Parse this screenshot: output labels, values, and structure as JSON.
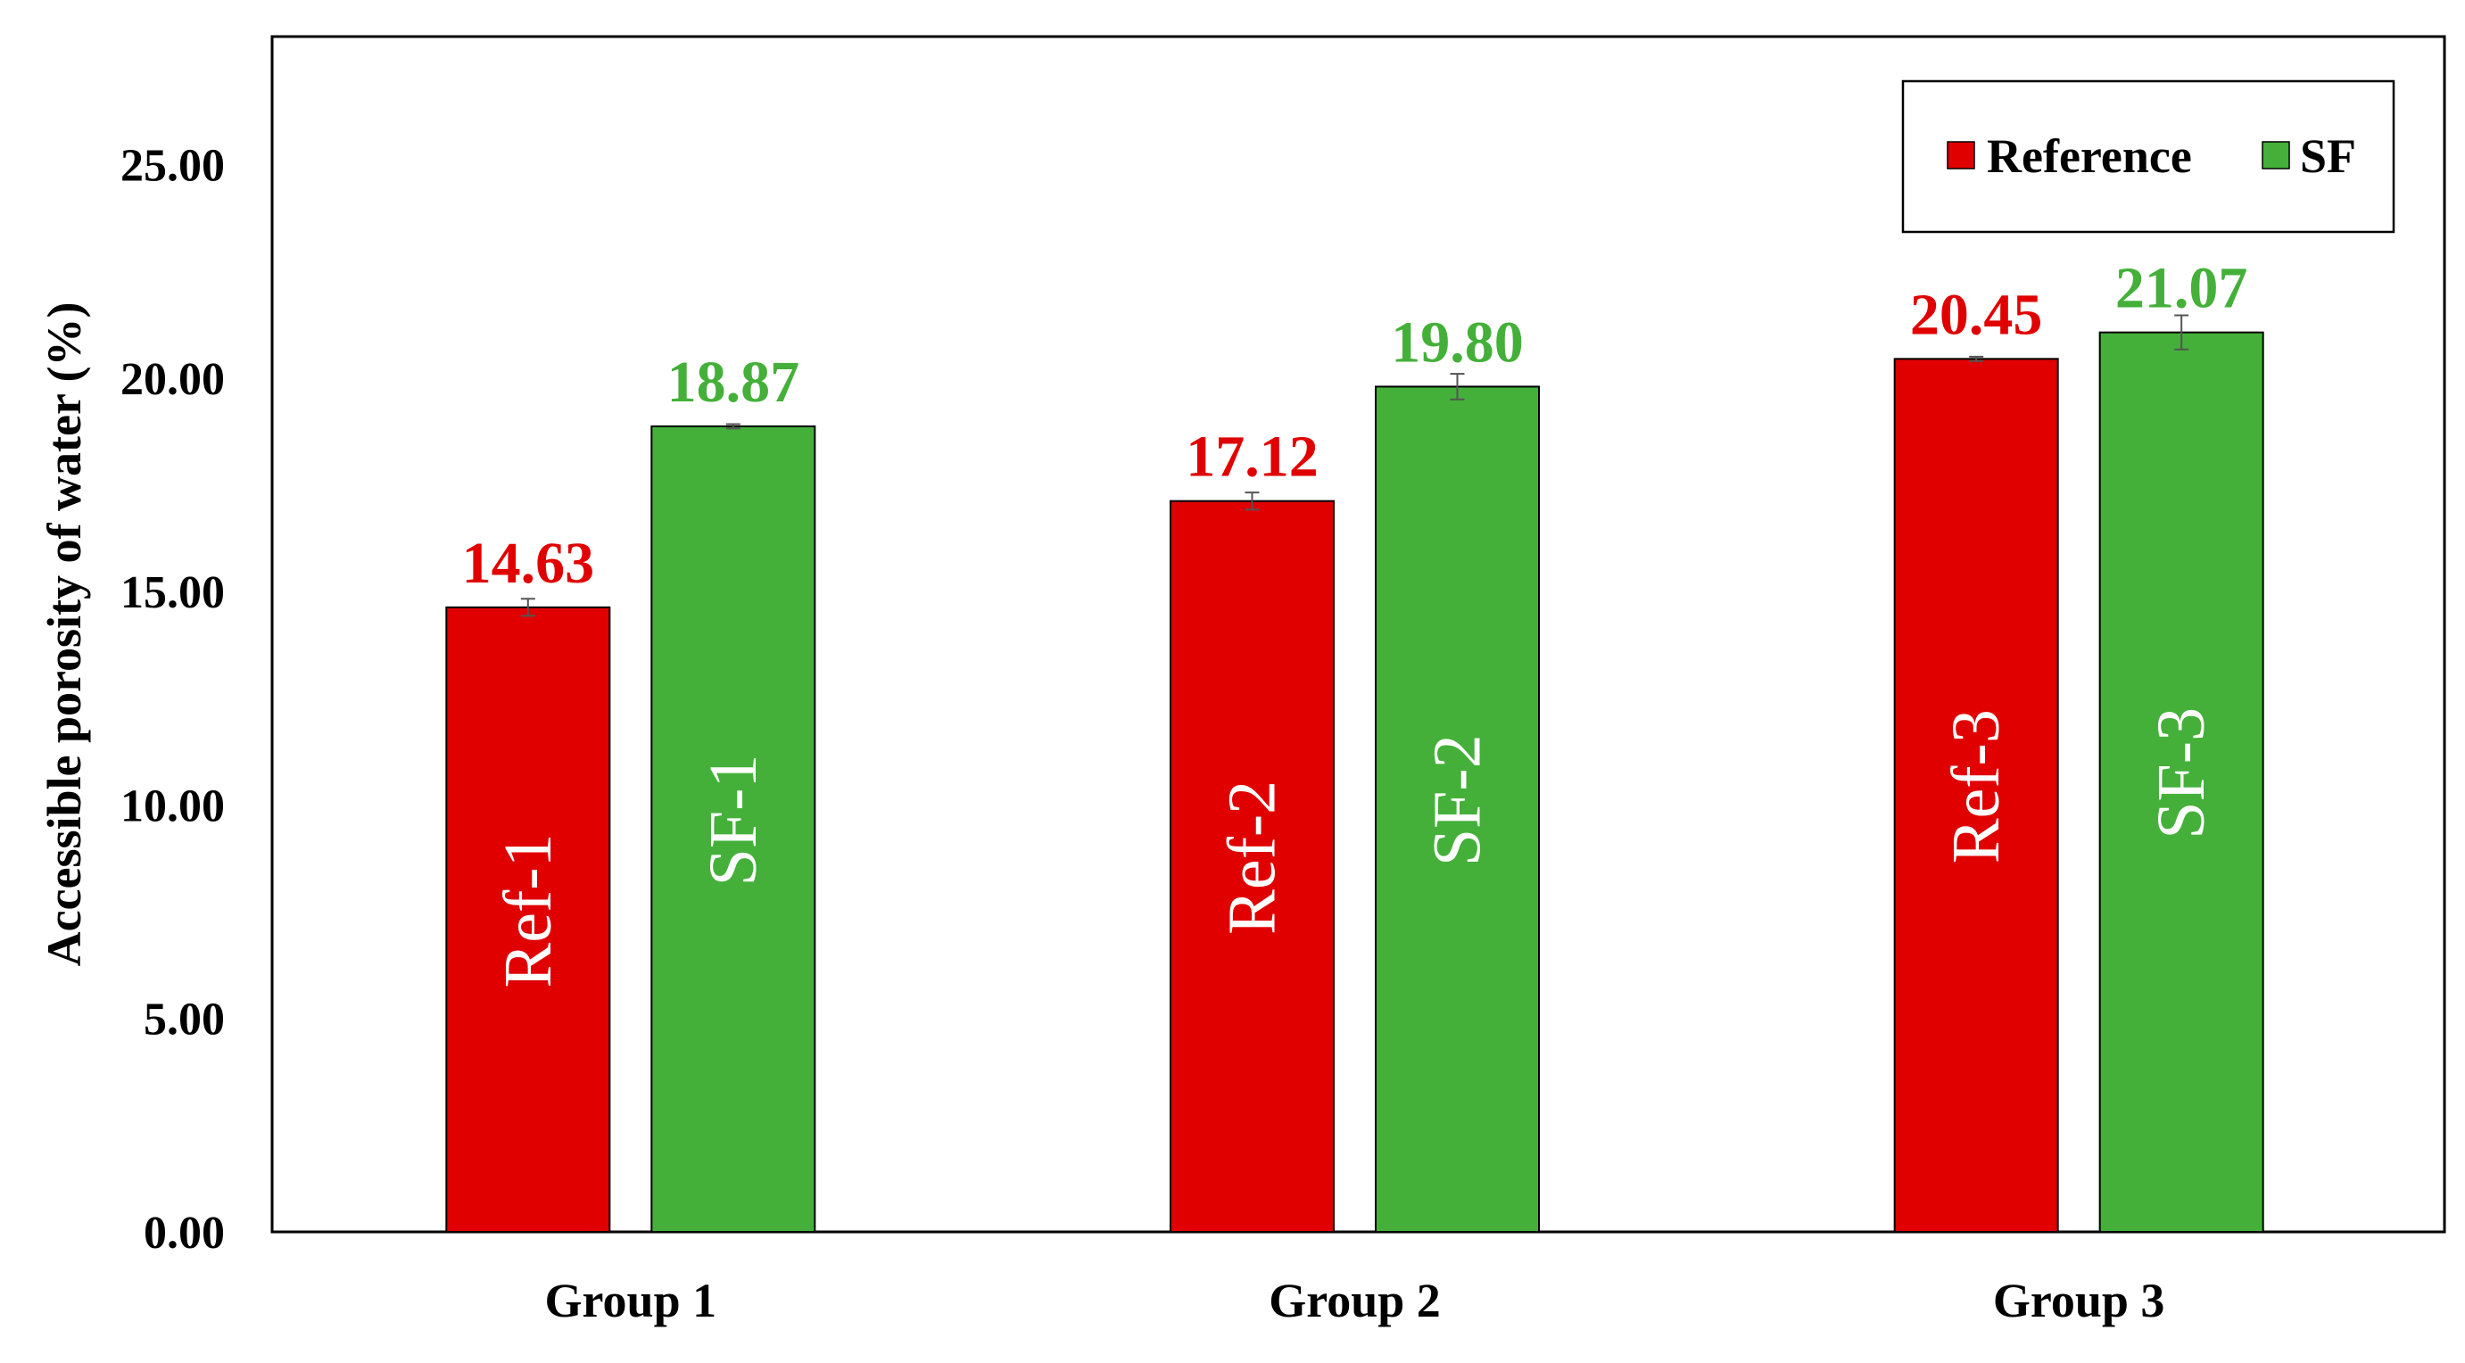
{
  "chart_data": {
    "type": "bar",
    "categories": [
      "Group 1",
      "Group 2",
      "Group 3"
    ],
    "ylabel": "Accessible porosity of water (%)",
    "xlabel": "",
    "ylim": [
      0,
      28
    ],
    "yticks": [
      "0.00",
      "5.00",
      "10.00",
      "15.00",
      "20.00",
      "25.00"
    ],
    "grid": false,
    "legend": "top-right",
    "series": [
      {
        "name": "Reference",
        "color": "#e00000",
        "values": [
          14.63,
          17.12,
          20.45
        ],
        "value_labels": [
          "14.63",
          "17.12",
          "20.45"
        ],
        "bar_labels": [
          "Ref-1",
          "Ref-2",
          "Ref-3"
        ],
        "errors": [
          0.2,
          0.2,
          0.05
        ]
      },
      {
        "name": "SF",
        "color": "#44b03a",
        "values": [
          18.87,
          19.8,
          21.07
        ],
        "value_labels": [
          "18.87",
          "19.80",
          "21.07"
        ],
        "bar_labels": [
          "SF-1",
          "SF-2",
          "SF-3"
        ],
        "errors": [
          0.05,
          0.3,
          0.4
        ]
      }
    ]
  }
}
